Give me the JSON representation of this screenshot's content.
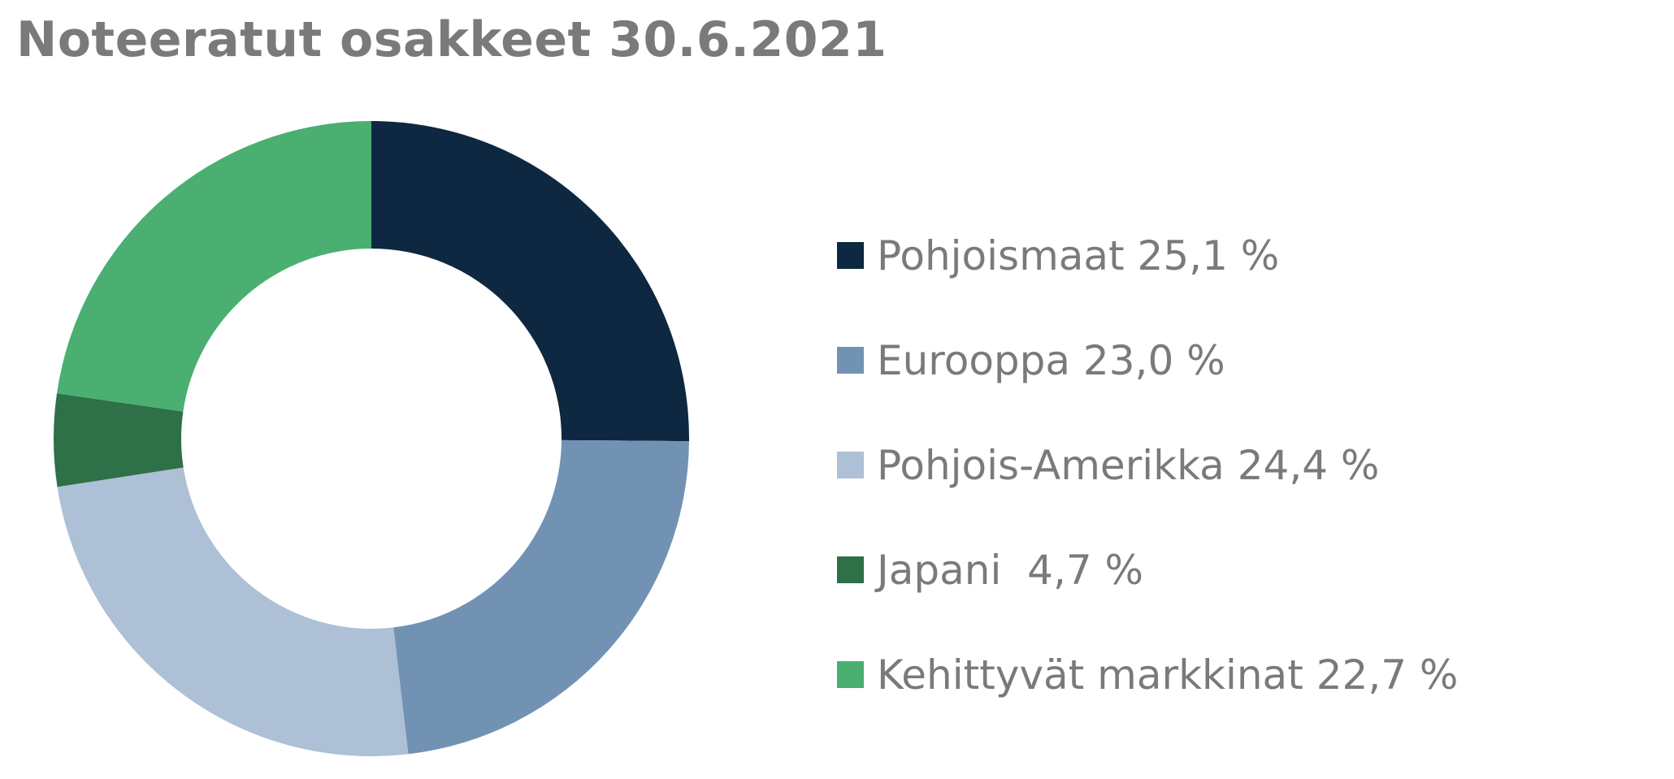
{
  "chart_data": {
    "type": "pie",
    "title": "Noteeratut osakkeet 30.6.2021",
    "donut": true,
    "legend_position": "right",
    "series": [
      {
        "name": "Pohjoismaat",
        "value": 25.1,
        "label": "Pohjoismaat 25,1 %",
        "color": "#0d2840"
      },
      {
        "name": "Eurooppa",
        "value": 23.0,
        "label": "Eurooppa 23,0 %",
        "color": "#7292b4"
      },
      {
        "name": "Pohjois-Amerikka",
        "value": 24.4,
        "label": "Pohjois-Amerikka 24,4 %",
        "color": "#adc0d5"
      },
      {
        "name": "Japani",
        "value": 4.7,
        "label": "Japani  4,7 %",
        "color": "#2e7047"
      },
      {
        "name": "Kehittyvät markkinat",
        "value": 22.7,
        "label": "Kehittyvät markkinat 22,7 %",
        "color": "#4aaf71"
      }
    ]
  }
}
